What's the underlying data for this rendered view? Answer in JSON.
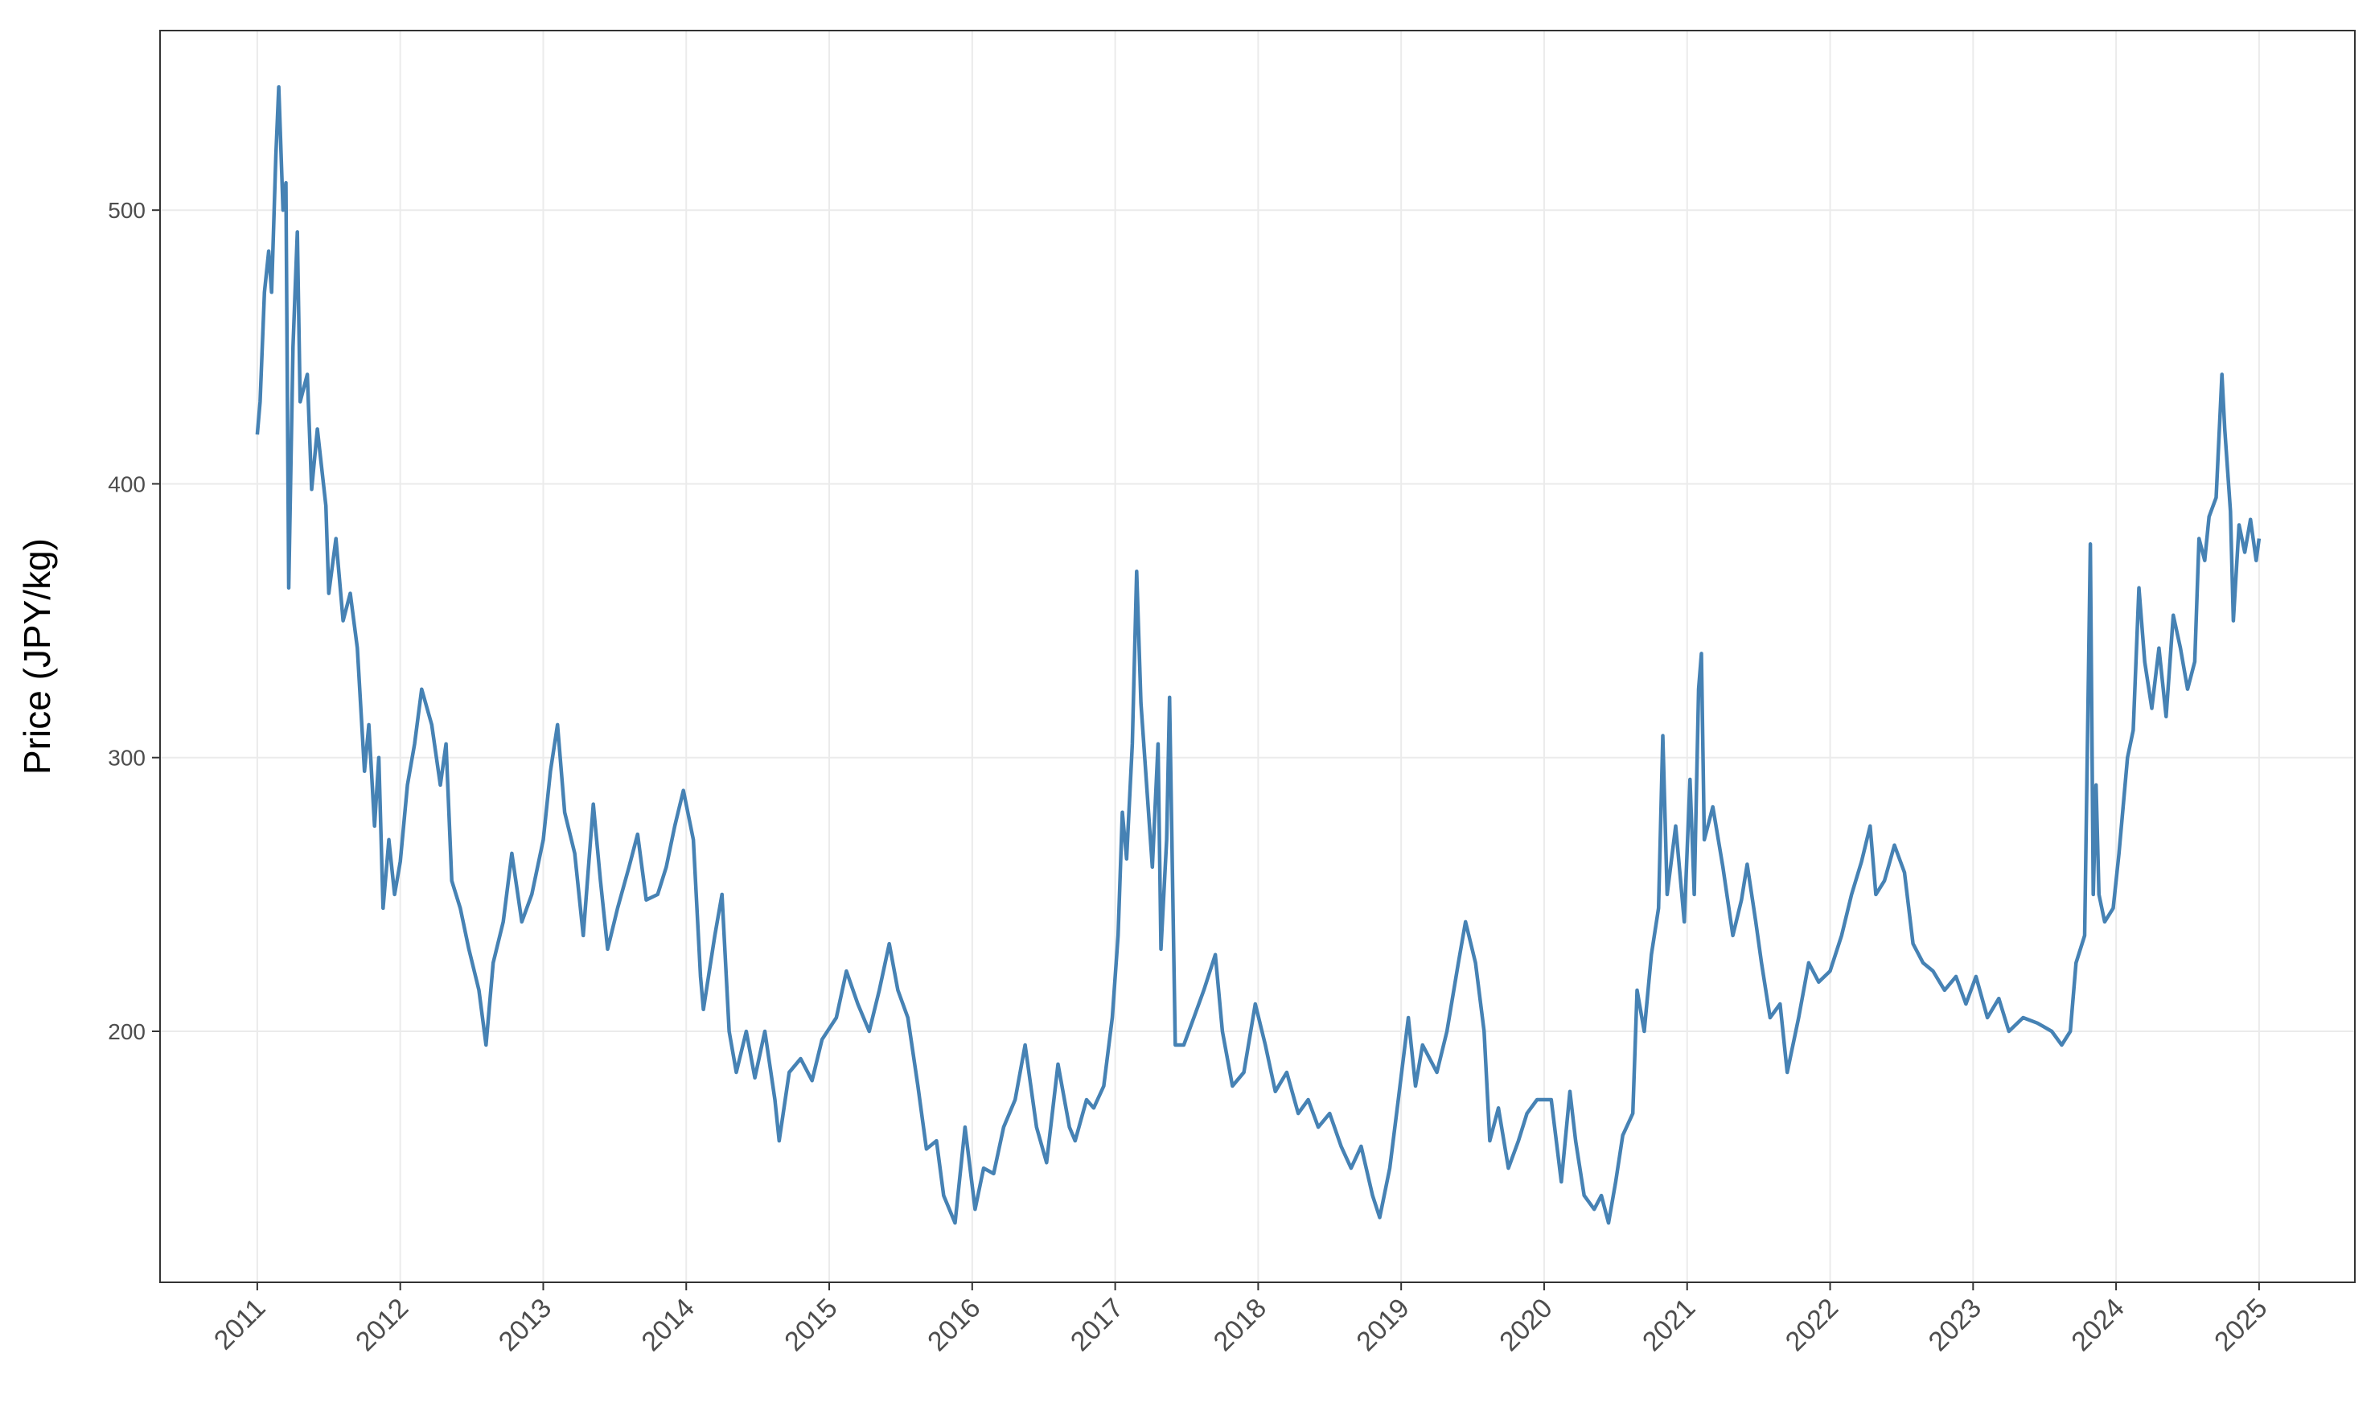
{
  "chart_data": {
    "type": "line",
    "ylabel": "Price (JPY/kg)",
    "x": [
      2011.0,
      2011.02,
      2011.05,
      2011.08,
      2011.1,
      2011.13,
      2011.15,
      2011.18,
      2011.2,
      2011.22,
      2011.25,
      2011.28,
      2011.3,
      2011.35,
      2011.38,
      2011.42,
      2011.48,
      2011.5,
      2011.55,
      2011.6,
      2011.65,
      2011.7,
      2011.75,
      2011.78,
      2011.82,
      2011.85,
      2011.88,
      2011.92,
      2011.96,
      2012.0,
      2012.05,
      2012.1,
      2012.15,
      2012.22,
      2012.28,
      2012.32,
      2012.36,
      2012.42,
      2012.48,
      2012.55,
      2012.6,
      2012.65,
      2012.72,
      2012.78,
      2012.85,
      2012.92,
      2013.0,
      2013.05,
      2013.1,
      2013.15,
      2013.22,
      2013.28,
      2013.35,
      2013.4,
      2013.45,
      2013.52,
      2013.6,
      2013.66,
      2013.72,
      2013.8,
      2013.86,
      2013.92,
      2013.98,
      2014.05,
      2014.1,
      2014.12,
      2014.2,
      2014.25,
      2014.3,
      2014.35,
      2014.42,
      2014.48,
      2014.55,
      2014.62,
      2014.65,
      2014.72,
      2014.8,
      2014.88,
      2014.95,
      2015.05,
      2015.12,
      2015.2,
      2015.28,
      2015.35,
      2015.42,
      2015.48,
      2015.55,
      2015.62,
      2015.68,
      2015.75,
      2015.8,
      2015.88,
      2015.95,
      2016.02,
      2016.08,
      2016.15,
      2016.22,
      2016.3,
      2016.37,
      2016.45,
      2016.52,
      2016.6,
      2016.68,
      2016.72,
      2016.8,
      2016.85,
      2016.92,
      2016.98,
      2017.02,
      2017.05,
      2017.08,
      2017.12,
      2017.15,
      2017.18,
      2017.22,
      2017.26,
      2017.3,
      2017.32,
      2017.36,
      2017.38,
      2017.42,
      2017.48,
      2017.55,
      2017.62,
      2017.7,
      2017.75,
      2017.82,
      2017.9,
      2017.98,
      2018.05,
      2018.12,
      2018.2,
      2018.28,
      2018.35,
      2018.42,
      2018.5,
      2018.58,
      2018.65,
      2018.72,
      2018.8,
      2018.85,
      2018.92,
      2018.98,
      2019.05,
      2019.1,
      2019.15,
      2019.25,
      2019.32,
      2019.4,
      2019.45,
      2019.52,
      2019.58,
      2019.62,
      2019.68,
      2019.75,
      2019.82,
      2019.88,
      2019.95,
      2020.05,
      2020.12,
      2020.18,
      2020.22,
      2020.28,
      2020.35,
      2020.4,
      2020.45,
      2020.5,
      2020.55,
      2020.62,
      2020.65,
      2020.7,
      2020.75,
      2020.8,
      2020.83,
      2020.86,
      2020.92,
      2020.98,
      2021.02,
      2021.05,
      2021.08,
      2021.1,
      2021.12,
      2021.18,
      2021.25,
      2021.32,
      2021.38,
      2021.42,
      2021.48,
      2021.52,
      2021.58,
      2021.65,
      2021.7,
      2021.78,
      2021.85,
      2021.92,
      2022.0,
      2022.08,
      2022.15,
      2022.22,
      2022.28,
      2022.32,
      2022.38,
      2022.45,
      2022.52,
      2022.58,
      2022.65,
      2022.72,
      2022.8,
      2022.88,
      2022.95,
      2023.02,
      2023.1,
      2023.18,
      2023.25,
      2023.35,
      2023.45,
      2023.55,
      2023.62,
      2023.68,
      2023.72,
      2023.78,
      2023.82,
      2023.84,
      2023.86,
      2023.88,
      2023.92,
      2023.98,
      2024.02,
      2024.08,
      2024.12,
      2024.16,
      2024.2,
      2024.25,
      2024.3,
      2024.35,
      2024.4,
      2024.45,
      2024.5,
      2024.55,
      2024.58,
      2024.62,
      2024.65,
      2024.7,
      2024.74,
      2024.76,
      2024.8,
      2024.82,
      2024.86,
      2024.9,
      2024.94,
      2024.98,
      2025.0
    ],
    "series": [
      {
        "color": "#4682b4",
        "values": [
          418,
          430,
          470,
          485,
          470,
          520,
          545,
          500,
          510,
          362,
          450,
          492,
          430,
          440,
          398,
          420,
          392,
          360,
          380,
          350,
          360,
          340,
          295,
          312,
          275,
          300,
          245,
          270,
          250,
          262,
          290,
          305,
          325,
          312,
          290,
          305,
          255,
          245,
          230,
          215,
          195,
          225,
          240,
          265,
          240,
          250,
          270,
          295,
          312,
          280,
          265,
          235,
          283,
          255,
          230,
          245,
          260,
          272,
          248,
          250,
          260,
          275,
          288,
          270,
          220,
          208,
          235,
          250,
          200,
          185,
          200,
          183,
          200,
          175,
          160,
          185,
          190,
          182,
          197,
          205,
          222,
          210,
          200,
          215,
          232,
          215,
          205,
          180,
          157,
          160,
          140,
          130,
          165,
          135,
          150,
          148,
          165,
          175,
          195,
          165,
          152,
          188,
          165,
          160,
          175,
          172,
          180,
          205,
          235,
          280,
          263,
          305,
          368,
          320,
          290,
          260,
          305,
          230,
          270,
          322,
          195,
          195,
          205,
          215,
          228,
          200,
          180,
          185,
          210,
          195,
          178,
          185,
          170,
          175,
          165,
          170,
          158,
          150,
          158,
          140,
          132,
          150,
          175,
          205,
          180,
          195,
          185,
          200,
          225,
          240,
          225,
          200,
          160,
          172,
          150,
          160,
          170,
          175,
          175,
          145,
          178,
          160,
          140,
          135,
          140,
          130,
          145,
          162,
          170,
          215,
          200,
          228,
          245,
          308,
          250,
          275,
          240,
          292,
          250,
          325,
          338,
          270,
          282,
          260,
          235,
          248,
          261,
          240,
          225,
          205,
          210,
          185,
          205,
          225,
          218,
          222,
          235,
          250,
          262,
          275,
          250,
          255,
          268,
          258,
          232,
          225,
          222,
          215,
          220,
          210,
          220,
          205,
          212,
          200,
          205,
          203,
          200,
          195,
          200,
          225,
          235,
          378,
          250,
          290,
          250,
          240,
          245,
          265,
          300,
          310,
          362,
          335,
          318,
          340,
          315,
          352,
          340,
          325,
          335,
          380,
          372,
          388,
          395,
          440,
          420,
          390,
          350,
          385,
          375,
          387,
          372,
          380
        ]
      }
    ],
    "xlim": [
      2010.32,
      2025.67
    ],
    "xticks": [
      2011,
      2012,
      2013,
      2014,
      2015,
      2016,
      2017,
      2018,
      2019,
      2020,
      2021,
      2022,
      2023,
      2024,
      2025
    ],
    "ylim": [
      108.3,
      565.6
    ],
    "yticks": [
      200,
      300,
      400,
      500
    ],
    "grid": true
  }
}
